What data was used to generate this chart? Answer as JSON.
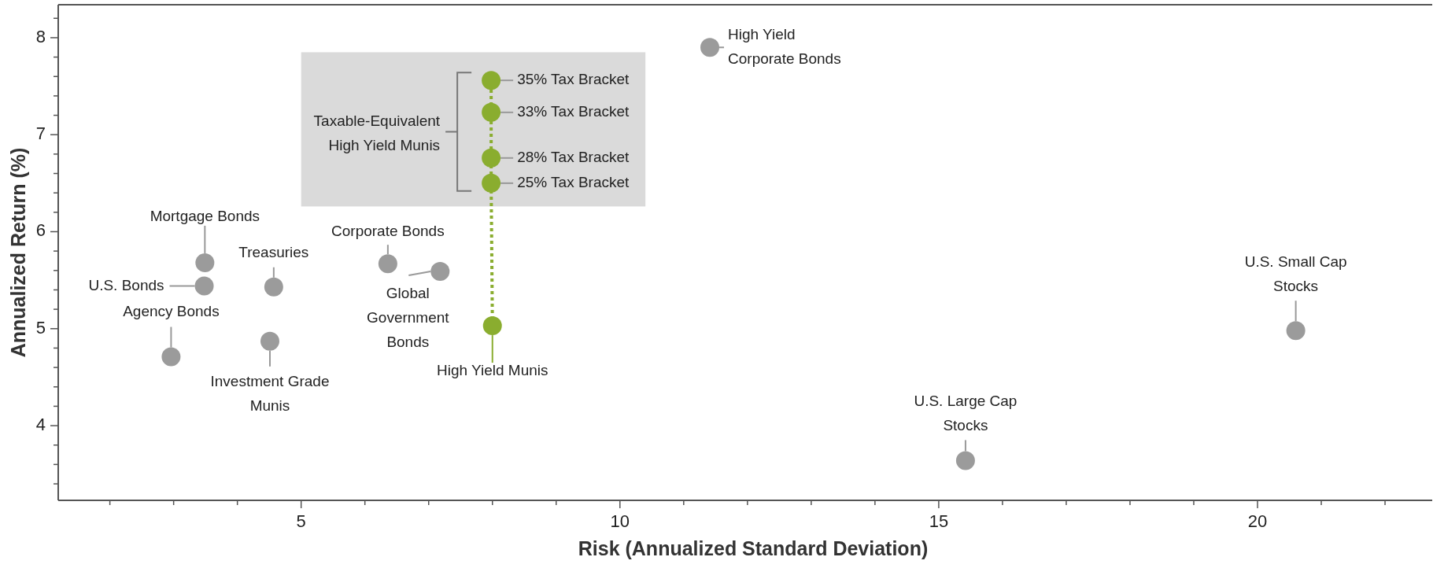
{
  "chart_data": {
    "type": "scatter",
    "xlabel": "Risk (Annualized Standard Deviation)",
    "ylabel": "Annualized Return (%)",
    "xlim": [
      1.19,
      22.74
    ],
    "ylim": [
      3.23,
      8.34
    ],
    "xticks": [
      {
        "value": 2,
        "label": null
      },
      {
        "value": 3,
        "label": null
      },
      {
        "value": 4,
        "label": null
      },
      5,
      {
        "value": 6,
        "label": null
      },
      {
        "value": 7,
        "label": null
      },
      {
        "value": 8,
        "label": null
      },
      {
        "value": 9,
        "label": null
      },
      10,
      {
        "value": 11,
        "label": null
      },
      {
        "value": 12,
        "label": null
      },
      {
        "value": 13,
        "label": null
      },
      {
        "value": 14,
        "label": null
      },
      15,
      {
        "value": 16,
        "label": null
      },
      {
        "value": 17,
        "label": null
      },
      {
        "value": 18,
        "label": null
      },
      {
        "value": 19,
        "label": null
      },
      20,
      {
        "value": 21,
        "label": null
      },
      {
        "value": 22,
        "label": null
      }
    ],
    "yticks": [
      {
        "value": 3.4,
        "label": null
      },
      {
        "value": 3.6,
        "label": null
      },
      {
        "value": 3.8,
        "label": null
      },
      4,
      {
        "value": 4.2,
        "label": null
      },
      {
        "value": 4.4,
        "label": null
      },
      {
        "value": 4.6,
        "label": null
      },
      {
        "value": 4.8,
        "label": null
      },
      5,
      {
        "value": 5.2,
        "label": null
      },
      {
        "value": 5.4,
        "label": null
      },
      {
        "value": 5.6,
        "label": null
      },
      {
        "value": 5.8,
        "label": null
      },
      6,
      {
        "value": 6.2,
        "label": null
      },
      {
        "value": 6.4,
        "label": null
      },
      {
        "value": 6.6,
        "label": null
      },
      {
        "value": 6.8,
        "label": null
      },
      7,
      {
        "value": 7.2,
        "label": null
      },
      {
        "value": 7.4,
        "label": null
      },
      {
        "value": 7.6,
        "label": null
      },
      {
        "value": 7.8,
        "label": null
      },
      8,
      {
        "value": 8.2,
        "label": null
      }
    ],
    "grid": false,
    "marker": "circle",
    "series": [
      {
        "color": "#9b9b9b",
        "x": [
          3.49,
          3.48,
          2.96,
          4.57,
          4.51,
          6.36,
          7.18,
          11.41,
          15.42,
          20.6
        ],
        "values": [
          5.68,
          5.44,
          4.71,
          5.43,
          4.87,
          5.67,
          5.59,
          7.9,
          3.64,
          4.98
        ]
      },
      {
        "type": "line",
        "color": "#8aad2f",
        "line_style": "dotted",
        "marker": "circle",
        "x": [
          8.0,
          7.98,
          7.98,
          7.98,
          7.98
        ],
        "values": [
          5.03,
          6.5,
          6.76,
          7.23,
          7.56
        ]
      }
    ],
    "annotations": [
      {
        "text": "Mortgage Bonds",
        "x": 3.49,
        "y": 5.68
      },
      {
        "text": "U.S. Bonds",
        "x": 3.48,
        "y": 5.44
      },
      {
        "text": "Agency Bonds",
        "x": 2.96,
        "y": 4.71
      },
      {
        "text": "Treasuries",
        "x": 4.57,
        "y": 5.43
      },
      {
        "text": "Investment Grade\nMunis",
        "x": 4.51,
        "y": 4.87
      },
      {
        "text": "Corporate Bonds",
        "x": 6.36,
        "y": 5.67
      },
      {
        "text": "Global\nGovernment\nBonds",
        "x": 7.18,
        "y": 5.59
      },
      {
        "text": "High Yield Munis",
        "x": 8.0,
        "y": 5.03
      },
      {
        "text": "High Yield\nCorporate Bonds",
        "x": 11.41,
        "y": 7.9
      },
      {
        "text": "U.S. Large Cap\nStocks",
        "x": 15.42,
        "y": 3.64
      },
      {
        "text": "U.S. Small Cap\nStocks",
        "x": 20.6,
        "y": 4.98
      },
      {
        "text": "25% Tax Bracket",
        "x": 7.98,
        "y": 6.5
      },
      {
        "text": "28% Tax Bracket",
        "x": 7.98,
        "y": 6.76
      },
      {
        "text": "33% Tax Bracket",
        "x": 7.98,
        "y": 7.23
      },
      {
        "text": "35% Tax Bracket",
        "x": 7.98,
        "y": 7.56
      },
      "Taxable-Equivalent\nHigh Yield Munis"
    ]
  }
}
